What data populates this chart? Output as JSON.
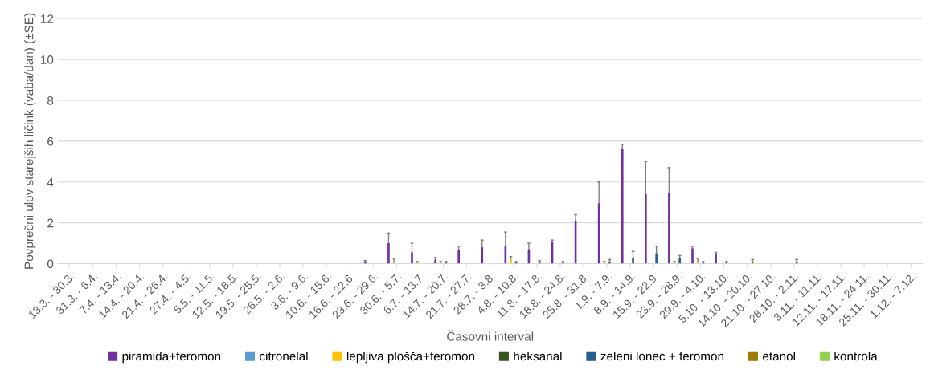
{
  "chart_data": {
    "type": "bar",
    "xlabel": "Časovni interval",
    "ylabel": "Povprečni ulov starejših ličink (vaba/dan) (±SE)",
    "categories": [
      "13.3. - 30.3.",
      "31.3. - 6.4.",
      "7.4. - 13.4.",
      "14.4. - 20.4.",
      "21.4. - 26.4.",
      "27.4. - 4.5.",
      "5.5. - 11.5.",
      "12.5. - 18.5.",
      "19.5. - 25.5.",
      "26.5. - 2.6.",
      "3.6. - 9.6.",
      "10.6. - 15.6.",
      "16.6. - 22.6.",
      "23.6. - 29.6.",
      "30.6. - 5.7.",
      "6.7. - 13.7.",
      "14.7. - 20.7.",
      "21.7. - 27.7.",
      "28.7. - 3.8.",
      "4.8. - 10.8.",
      "11.8. - 17.8.",
      "18.8. - 24.8.",
      "25.8. - 31.8.",
      "1.9. - 7.9.",
      "8.9. - 14.9.",
      "15.9. - 22.9.",
      "23.9. - 28.9.",
      "29.9. - 4.10.",
      "5.10. - 13.10.",
      "14.10. - 20.10.",
      "21.10. - 27.10.",
      "28.10. - 2.11.",
      "3.11. - 11.11.",
      "12.11. - 17.11.",
      "18.11. - 24.11.",
      "25.11. - 30.11.",
      "1.12. - 7.12."
    ],
    "series": [
      {
        "name": "piramida+feromon",
        "color": "#7030a0",
        "values": [
          0,
          0,
          0,
          0,
          0,
          0,
          0,
          0,
          0,
          0,
          0,
          0,
          0,
          0.1,
          1.0,
          0.55,
          0.2,
          0.65,
          0.8,
          0.85,
          0.7,
          1.05,
          2.1,
          2.95,
          5.6,
          3.4,
          3.45,
          0.75,
          0.45,
          0,
          0,
          0,
          0,
          0,
          0,
          0,
          0
        ],
        "errors": [
          null,
          null,
          null,
          null,
          null,
          null,
          null,
          null,
          null,
          null,
          null,
          null,
          null,
          [
            0.1,
            0.15
          ],
          [
            1.0,
            1.5
          ],
          [
            0.55,
            1.0
          ],
          [
            0.2,
            0.3
          ],
          [
            0.65,
            0.85
          ],
          [
            0.8,
            1.15
          ],
          [
            0.85,
            1.55
          ],
          [
            0.7,
            1.0
          ],
          [
            1.05,
            1.15
          ],
          [
            2.1,
            2.4
          ],
          [
            2.95,
            4.0
          ],
          [
            5.6,
            5.85
          ],
          [
            3.4,
            5.0
          ],
          [
            3.45,
            4.7
          ],
          [
            0.75,
            0.85
          ],
          [
            0.45,
            0.55
          ],
          null,
          null,
          null,
          null,
          null,
          null,
          null,
          null
        ]
      },
      {
        "name": "citronelal",
        "color": "#5b9bd5",
        "values": [
          0,
          0,
          0,
          0,
          0,
          0,
          0,
          0,
          0,
          0,
          0,
          0,
          0,
          0,
          0,
          0,
          0,
          0,
          0,
          0,
          0,
          0,
          0,
          0,
          0,
          0,
          0,
          0,
          0,
          0,
          0,
          0,
          0,
          0,
          0,
          0,
          0
        ]
      },
      {
        "name": "lepljiva plošča+feromon",
        "color": "#ffc000",
        "values": [
          0,
          0,
          0,
          0,
          0,
          0,
          0,
          0,
          0,
          0,
          0,
          0,
          0,
          0,
          0.1,
          0.05,
          0.05,
          0,
          0,
          0.2,
          0,
          0,
          0,
          0.05,
          0,
          0,
          0.05,
          0.1,
          0,
          0,
          0,
          0,
          0,
          0,
          0,
          0,
          0
        ],
        "errors": [
          null,
          null,
          null,
          null,
          null,
          null,
          null,
          null,
          null,
          null,
          null,
          null,
          null,
          null,
          [
            0.1,
            0.25
          ],
          [
            0.05,
            0.1
          ],
          [
            0.05,
            0.1
          ],
          null,
          null,
          [
            0.2,
            0.35
          ],
          null,
          null,
          null,
          [
            0.05,
            0.1
          ],
          null,
          null,
          [
            0.05,
            0.1
          ],
          [
            0.1,
            0.25
          ],
          null,
          null,
          null,
          null,
          null,
          null,
          null,
          null,
          null
        ]
      },
      {
        "name": "heksanal",
        "color": "#375623",
        "values": [
          0,
          0,
          0,
          0,
          0,
          0,
          0,
          0,
          0,
          0,
          0,
          0,
          0,
          0,
          0,
          0,
          0,
          0,
          0,
          0,
          0,
          0,
          0,
          0,
          0,
          0,
          0,
          0,
          0,
          0,
          0,
          0,
          0,
          0,
          0,
          0,
          0
        ]
      },
      {
        "name": "zeleni lonec + feromon",
        "color": "#255e91",
        "values": [
          0,
          0,
          0,
          0,
          0,
          0,
          0,
          0,
          0,
          0,
          0,
          0,
          0,
          0,
          0,
          0,
          0.05,
          0,
          0,
          0.05,
          0.1,
          0.05,
          0,
          0.1,
          0.3,
          0.5,
          0.3,
          0.05,
          0.05,
          0,
          0,
          0.1,
          0,
          0,
          0,
          0,
          0
        ],
        "errors": [
          null,
          null,
          null,
          null,
          null,
          null,
          null,
          null,
          null,
          null,
          null,
          null,
          null,
          null,
          null,
          null,
          [
            0.05,
            0.1
          ],
          null,
          null,
          [
            0.05,
            0.1
          ],
          [
            0.1,
            0.15
          ],
          [
            0.05,
            0.1
          ],
          null,
          [
            0.1,
            0.2
          ],
          [
            0.3,
            0.6
          ],
          [
            0.5,
            0.85
          ],
          [
            0.3,
            0.4
          ],
          [
            0.05,
            0.1
          ],
          [
            0.05,
            0.1
          ],
          null,
          null,
          [
            0.1,
            0.2
          ],
          null,
          null,
          null,
          null,
          null
        ]
      },
      {
        "name": "etanol",
        "color": "#9e7a00",
        "values": [
          0,
          0,
          0,
          0,
          0,
          0,
          0,
          0,
          0,
          0,
          0,
          0,
          0,
          0,
          0,
          0,
          0,
          0,
          0,
          0,
          0,
          0,
          0,
          0,
          0,
          0,
          0,
          0,
          0,
          0.1,
          0,
          0,
          0,
          0,
          0,
          0,
          0
        ],
        "errors": [
          null,
          null,
          null,
          null,
          null,
          null,
          null,
          null,
          null,
          null,
          null,
          null,
          null,
          null,
          null,
          null,
          null,
          null,
          null,
          null,
          null,
          null,
          null,
          null,
          null,
          null,
          null,
          null,
          null,
          [
            0.1,
            0.2
          ],
          null,
          null,
          null,
          null,
          null,
          null,
          null
        ]
      },
      {
        "name": "kontrola",
        "color": "#92d050",
        "values": [
          0,
          0,
          0,
          0,
          0,
          0,
          0,
          0,
          0,
          0,
          0,
          0,
          0,
          0,
          0,
          0,
          0,
          0,
          0,
          0,
          0,
          0,
          0,
          0,
          0,
          0,
          0,
          0,
          0,
          0,
          0,
          0,
          0,
          0,
          0,
          0,
          0
        ]
      }
    ],
    "ylim": [
      0,
      12
    ],
    "yticks": [
      0,
      2,
      4,
      6,
      8,
      10,
      12
    ],
    "grid": "y",
    "legend": "bottom"
  }
}
